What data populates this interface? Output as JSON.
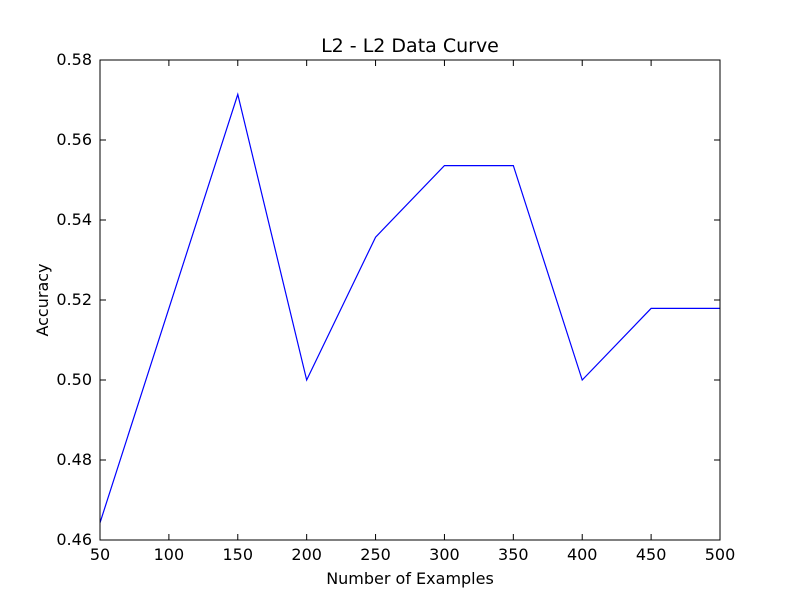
{
  "chart_data": {
    "type": "line",
    "title": "L2 - L2 Data Curve",
    "xlabel": "Number of Examples",
    "ylabel": "Accuracy",
    "xlim": [
      50,
      500
    ],
    "ylim": [
      0.46,
      0.58
    ],
    "xticks": [
      "50",
      "100",
      "150",
      "200",
      "250",
      "300",
      "350",
      "400",
      "450",
      "500"
    ],
    "yticks": [
      "0.46",
      "0.48",
      "0.50",
      "0.52",
      "0.54",
      "0.56",
      "0.58"
    ],
    "grid": false,
    "series": [
      {
        "color": "#0000ff",
        "x": [
          50,
          100,
          150,
          200,
          250,
          300,
          350,
          400,
          450,
          500
        ],
        "y": [
          0.4643,
          0.5179,
          0.5714,
          0.5,
          0.5357,
          0.5536,
          0.5536,
          0.5,
          0.5179,
          0.5179
        ]
      }
    ]
  }
}
